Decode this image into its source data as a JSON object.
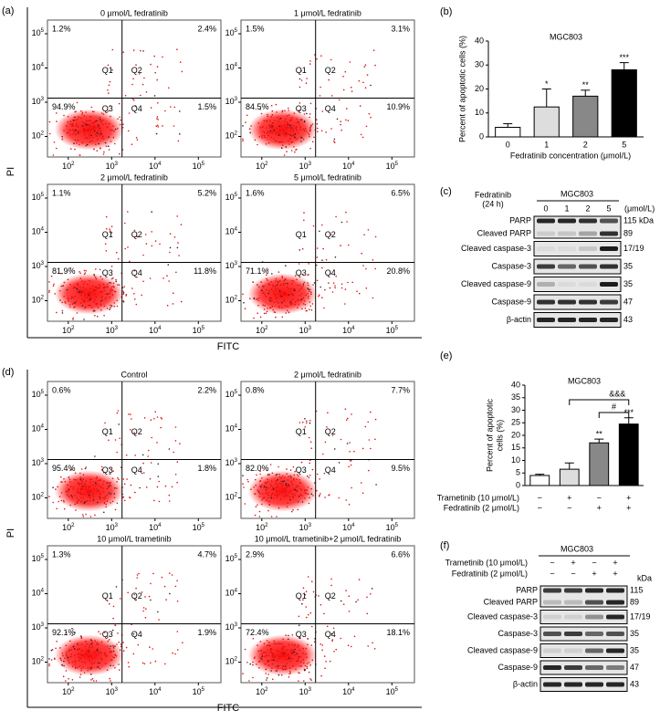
{
  "flow_axis": {
    "base": "10",
    "exponents": [
      "2",
      "3",
      "4",
      "5"
    ]
  },
  "quadrants": [
    "Q1",
    "Q2",
    "Q3",
    "Q4"
  ],
  "flow_a": {
    "label": "(a)",
    "y_axis_label": "PI",
    "x_axis_label": "FITC",
    "plots": [
      {
        "title": "0 μmol/L fedratinib",
        "q1": "1.2%",
        "q2": "2.4%",
        "q3": "94.9%",
        "q4": "1.5%"
      },
      {
        "title": "1 μmol/L fedratinib",
        "q1": "1.5%",
        "q2": "3.1%",
        "q3": "84.5%",
        "q4": "10.9%"
      },
      {
        "title": "2 μmol/L fedratinib",
        "q1": "1.1%",
        "q2": "5.2%",
        "q3": "81.9%",
        "q4": "11.8%"
      },
      {
        "title": "5 μmol/L fedratinib",
        "q1": "1.6%",
        "q2": "6.5%",
        "q3": "71.1%",
        "q4": "20.8%"
      }
    ]
  },
  "flow_d": {
    "label": "(d)",
    "y_axis_label": "PI",
    "x_axis_label": "FITC",
    "plots": [
      {
        "title": "Control",
        "q1": "0.6%",
        "q2": "2.2%",
        "q3": "95.4%",
        "q4": "1.8%"
      },
      {
        "title": "2 μmol/L fedratinib",
        "q1": "0.8%",
        "q2": "7.7%",
        "q3": "82.0%",
        "q4": "9.5%"
      },
      {
        "title": "10 μmol/L trametinib",
        "q1": "1.3%",
        "q2": "4.7%",
        "q3": "92.1%",
        "q4": "1.9%"
      },
      {
        "title": "10 μmol/L trametinib+2 μmol/L fedratinib",
        "q1": "2.9%",
        "q2": "6.6%",
        "q3": "72.4%",
        "q4": "18.1%"
      }
    ]
  },
  "chart_data": [
    {
      "label": "(b)",
      "type": "bar",
      "title": "MGC803",
      "ylabel": "Percent of apoptotic cells (%)",
      "xlabel": "Fedratinib concentration (μmol/L)",
      "categories": [
        "0",
        "1",
        "2",
        "5"
      ],
      "values": [
        4,
        12.5,
        17,
        28
      ],
      "errors": [
        1.5,
        7.5,
        2.5,
        3
      ],
      "colors": [
        "#ffffff",
        "#dddddd",
        "#888888",
        "#000000"
      ],
      "significance": [
        null,
        "*",
        "**",
        "***"
      ],
      "ylim": [
        0,
        40
      ],
      "yticks": [
        0,
        10,
        20,
        30,
        40
      ]
    },
    {
      "label": "(e)",
      "type": "bar",
      "title": "MGC803",
      "ylabel_lines": [
        "Percent of apoptotic",
        "cells (%)"
      ],
      "categories": [
        null,
        null,
        null,
        null
      ],
      "values": [
        4,
        6.5,
        17,
        24.5
      ],
      "errors": [
        0.5,
        2.5,
        1.5,
        2.5
      ],
      "colors": [
        "#ffffff",
        "#dddddd",
        "#888888",
        "#000000"
      ],
      "significance": [
        null,
        null,
        "**",
        "***"
      ],
      "comparison_labels": [
        "&&&",
        "#"
      ],
      "ylim": [
        0,
        40
      ],
      "yticks": [
        0,
        5,
        10,
        15,
        20,
        25,
        30,
        35,
        40
      ],
      "treatments": [
        {
          "name": "Trametinib (10 μmol/L)",
          "signs": [
            "−",
            "+",
            "−",
            "+"
          ]
        },
        {
          "name": "Fedratinib (2 μmol/L)",
          "signs": [
            "−",
            "−",
            "+",
            "+"
          ]
        }
      ]
    }
  ],
  "blot_c": {
    "label": "(c)",
    "treatment": "Fedratinib",
    "treatment_time": "(24 h)",
    "cell_line": "MGC803",
    "lanes": [
      "0",
      "1",
      "2",
      "5"
    ],
    "unit": "(μmol/L)",
    "kda_unit": "kDa",
    "rows": [
      {
        "name": "PARP",
        "kda": "115"
      },
      {
        "name": "Cleaved PARP",
        "kda": "89"
      },
      {
        "name": "Cleaved caspase-3",
        "kda": "17/19"
      },
      {
        "name": "Caspase-3",
        "kda": "35"
      },
      {
        "name": "Cleaved caspase-9",
        "kda": "35"
      },
      {
        "name": "Caspase-9",
        "kda": "47"
      },
      {
        "name": "β-actin",
        "kda": "43"
      }
    ]
  },
  "blot_f": {
    "label": "(f)",
    "cell_line": "MGC803",
    "kda_unit": "kDa",
    "treatments": [
      {
        "name": "Trametinib (10 μmol/L)",
        "signs": [
          "−",
          "+",
          "−",
          "+"
        ]
      },
      {
        "name": "Fedratinib  (2 μmol/L)",
        "signs": [
          "−",
          "−",
          "+",
          "+"
        ]
      }
    ],
    "rows": [
      {
        "name": "PARP",
        "kda": "115"
      },
      {
        "name": "Cleaved PARP",
        "kda": "89"
      },
      {
        "name": "Cleaved caspase-3",
        "kda": "17/19"
      },
      {
        "name": "Caspase-3",
        "kda": "35"
      },
      {
        "name": "Cleaved caspase-9",
        "kda": "35"
      },
      {
        "name": "Caspase-9",
        "kda": "47"
      },
      {
        "name": "β-actin",
        "kda": "43"
      }
    ]
  }
}
